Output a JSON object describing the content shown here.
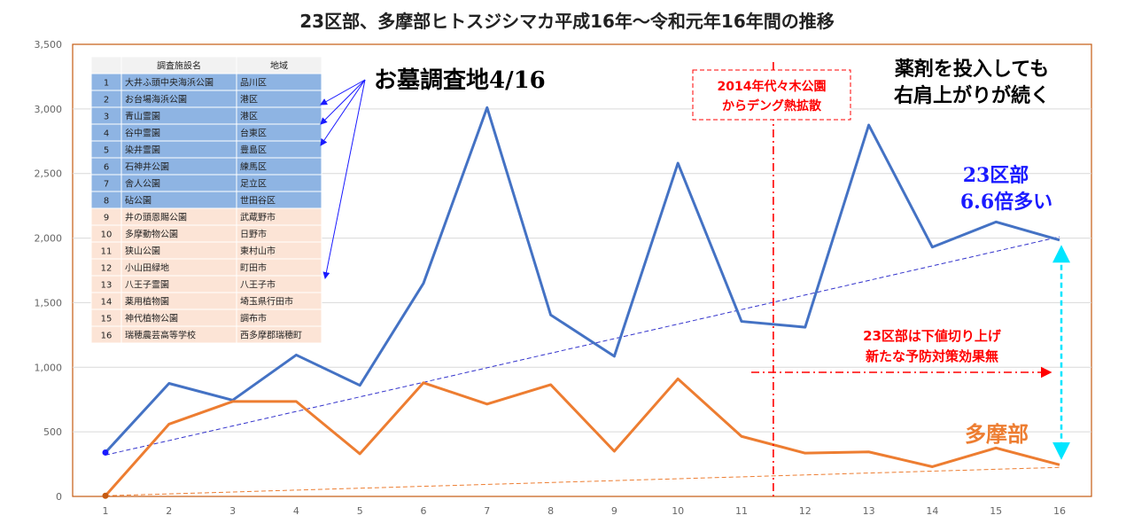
{
  "title": "23区部、多摩部ヒトスジシマカ平成16年～令和元年16年間の推移",
  "chart_data": {
    "type": "line",
    "title": "23区部、多摩部ヒトスジシマカ平成16年～令和元年16年間の推移",
    "x": [
      1,
      2,
      3,
      4,
      5,
      6,
      7,
      8,
      9,
      10,
      11,
      12,
      13,
      14,
      15,
      16
    ],
    "ylim": [
      0,
      3500
    ],
    "yticks": [
      0,
      500,
      1000,
      1500,
      2000,
      2500,
      3000,
      3500
    ],
    "ytick_labels": [
      "0",
      "500",
      "1,000",
      "1,500",
      "2,000",
      "2,500",
      "3,000",
      "3,500"
    ],
    "grid": true,
    "series": [
      {
        "name": "23区部",
        "color": "#4472C4",
        "values": [
          340,
          875,
          745,
          1095,
          860,
          1650,
          3010,
          1405,
          1085,
          2580,
          1355,
          1310,
          2875,
          1930,
          2125,
          1985
        ]
      },
      {
        "name": "多摩部",
        "color": "#ED7D31",
        "values": [
          5,
          560,
          735,
          735,
          330,
          880,
          715,
          865,
          350,
          910,
          465,
          335,
          345,
          230,
          375,
          245
        ]
      }
    ],
    "trendlines": [
      {
        "series": "23区部",
        "from": [
          1,
          320
        ],
        "to": [
          16,
          2010
        ],
        "color": "#3333cc"
      },
      {
        "series": "多摩部",
        "from": [
          1,
          5
        ],
        "to": [
          16,
          225
        ],
        "color": "#ED7D31"
      }
    ],
    "event_x": 11.5
  },
  "table": {
    "headers": [
      "",
      "調査施設名",
      "地域"
    ],
    "rows": [
      [
        "1",
        "大井ふ頭中央海浜公園",
        "品川区"
      ],
      [
        "2",
        "お台場海浜公園",
        "港区"
      ],
      [
        "3",
        "青山霊園",
        "港区"
      ],
      [
        "4",
        "谷中霊園",
        "台東区"
      ],
      [
        "5",
        "染井霊園",
        "豊島区"
      ],
      [
        "6",
        "石神井公園",
        "練馬区"
      ],
      [
        "7",
        "舎人公園",
        "足立区"
      ],
      [
        "8",
        "砧公園",
        "世田谷区"
      ],
      [
        "9",
        "井の頭恩賜公園",
        "武蔵野市"
      ],
      [
        "10",
        "多摩動物公園",
        "日野市"
      ],
      [
        "11",
        "狭山公園",
        "東村山市"
      ],
      [
        "12",
        "小山田緑地",
        "町田市"
      ],
      [
        "13",
        "八王子霊園",
        "八王子市"
      ],
      [
        "14",
        "薬用植物園",
        "埼玉県行田市"
      ],
      [
        "15",
        "神代植物公園",
        "調布市"
      ],
      [
        "16",
        "瑞穂農芸高等学校",
        "西多摩郡瑞穂町"
      ]
    ],
    "ku_color": "#8EB4E3",
    "tama_color": "#FCE4D6",
    "header_color": "#F2F2F2"
  },
  "annotations": {
    "survey": "お墓調査地4/16",
    "dengue": [
      "2014年代々木公園",
      "からデング熱拡散"
    ],
    "pesticide": [
      "薬剤を投入しても",
      "右肩上がりが続く"
    ],
    "ku_label": [
      "23区部",
      "6.6倍多い"
    ],
    "ku_floor": [
      "23区部は下値切り上げ",
      "新たな予防対策効果無"
    ],
    "tama_label": "多摩部"
  }
}
